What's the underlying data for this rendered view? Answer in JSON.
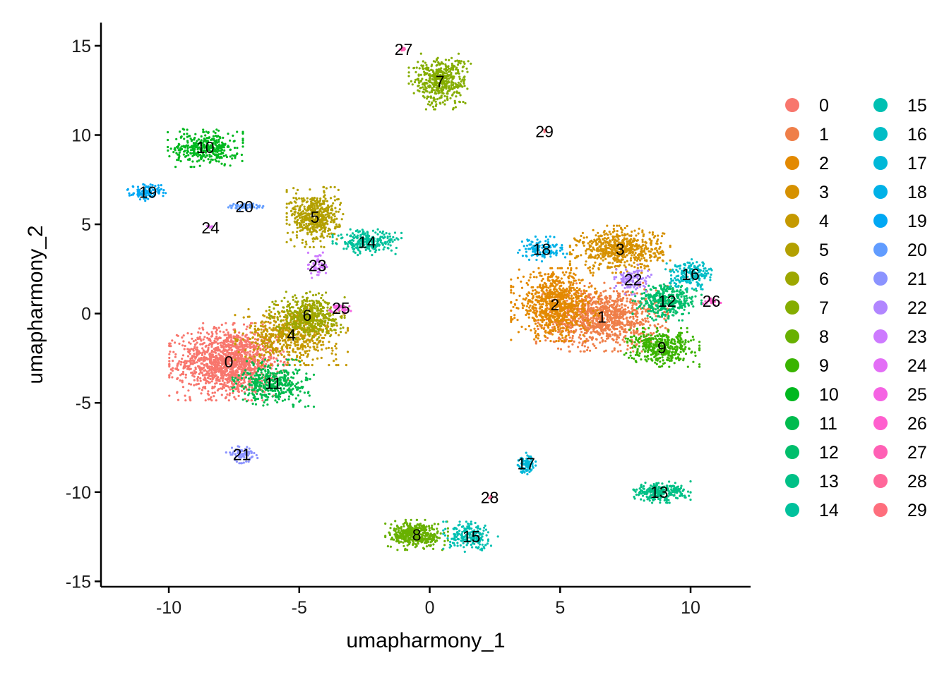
{
  "chart_data": {
    "type": "scatter",
    "xlabel": "umapharmony_1",
    "ylabel": "umapharmony_2",
    "xlim": [
      -12.6,
      12.3
    ],
    "ylim": [
      -15.3,
      16.3
    ],
    "xticks": [
      -10,
      -5,
      0,
      5,
      10
    ],
    "yticks": [
      -15,
      -10,
      -5,
      0,
      5,
      10,
      15
    ],
    "grid": false,
    "legend_placement": "right",
    "clusters": [
      {
        "id": "0",
        "color": "#F8766D",
        "label_pos": [
          -7.7,
          -2.7
        ],
        "spread": [
          0.95,
          0.9
        ],
        "n": 1400
      },
      {
        "id": "1",
        "color": "#EF7F49",
        "label_pos": [
          6.6,
          -0.2
        ],
        "spread": [
          1.05,
          0.8
        ],
        "n": 1100
      },
      {
        "id": "2",
        "color": "#E38900",
        "label_pos": [
          4.8,
          0.5
        ],
        "spread": [
          0.7,
          0.85
        ],
        "n": 800
      },
      {
        "id": "3",
        "color": "#D69100",
        "label_pos": [
          7.3,
          3.6
        ],
        "spread": [
          0.8,
          0.55
        ],
        "n": 600
      },
      {
        "id": "4",
        "color": "#C59900",
        "label_pos": [
          -5.3,
          -1.2
        ],
        "spread": [
          0.9,
          0.7
        ],
        "n": 600
      },
      {
        "id": "5",
        "color": "#B3A000",
        "label_pos": [
          -4.4,
          5.4
        ],
        "spread": [
          0.45,
          0.7
        ],
        "n": 500
      },
      {
        "id": "6",
        "color": "#9DA700",
        "label_pos": [
          -4.7,
          -0.1
        ],
        "spread": [
          0.6,
          0.55
        ],
        "n": 450
      },
      {
        "id": "7",
        "color": "#85AD00",
        "label_pos": [
          0.4,
          13.0
        ],
        "spread": [
          0.5,
          0.65
        ],
        "n": 450
      },
      {
        "id": "8",
        "color": "#68B100",
        "label_pos": [
          -0.5,
          -12.4
        ],
        "spread": [
          0.5,
          0.35
        ],
        "n": 400
      },
      {
        "id": "9",
        "color": "#3AB400",
        "label_pos": [
          8.9,
          -1.9
        ],
        "spread": [
          0.6,
          0.45
        ],
        "n": 400
      },
      {
        "id": "10",
        "color": "#00B81F",
        "label_pos": [
          -8.6,
          9.3
        ],
        "spread": [
          0.6,
          0.45
        ],
        "n": 350
      },
      {
        "id": "11",
        "color": "#00BB4E",
        "label_pos": [
          -6.0,
          -3.9
        ],
        "spread": [
          0.65,
          0.55
        ],
        "n": 400
      },
      {
        "id": "12",
        "color": "#00BE6C",
        "label_pos": [
          9.1,
          0.7
        ],
        "spread": [
          0.55,
          0.45
        ],
        "n": 350
      },
      {
        "id": "13",
        "color": "#00C086",
        "label_pos": [
          8.8,
          -10.0
        ],
        "spread": [
          0.5,
          0.25
        ],
        "n": 250
      },
      {
        "id": "14",
        "color": "#00C19C",
        "label_pos": [
          -2.4,
          4.0
        ],
        "spread": [
          0.55,
          0.3
        ],
        "n": 250
      },
      {
        "id": "15",
        "color": "#00C0B2",
        "label_pos": [
          1.6,
          -12.5
        ],
        "spread": [
          0.45,
          0.35
        ],
        "n": 200
      },
      {
        "id": "16",
        "color": "#00BDC6",
        "label_pos": [
          10.0,
          2.2
        ],
        "spread": [
          0.4,
          0.35
        ],
        "n": 200
      },
      {
        "id": "17",
        "color": "#00B8D8",
        "label_pos": [
          3.7,
          -8.4
        ],
        "spread": [
          0.15,
          0.25
        ],
        "n": 90
      },
      {
        "id": "18",
        "color": "#00B1E7",
        "label_pos": [
          4.3,
          3.6
        ],
        "spread": [
          0.4,
          0.3
        ],
        "n": 120
      },
      {
        "id": "19",
        "color": "#00A8F4",
        "label_pos": [
          -10.8,
          6.8
        ],
        "spread": [
          0.35,
          0.2
        ],
        "n": 120
      },
      {
        "id": "20",
        "color": "#619CFF",
        "label_pos": [
          -7.1,
          6.0
        ],
        "spread": [
          0.3,
          0.08
        ],
        "n": 60
      },
      {
        "id": "21",
        "color": "#8B93FF",
        "label_pos": [
          -7.2,
          -7.9
        ],
        "spread": [
          0.25,
          0.2
        ],
        "n": 80
      },
      {
        "id": "22",
        "color": "#B186FF",
        "label_pos": [
          7.8,
          1.9
        ],
        "spread": [
          0.3,
          0.35
        ],
        "n": 120
      },
      {
        "id": "23",
        "color": "#CD7AFF",
        "label_pos": [
          -4.3,
          2.7
        ],
        "spread": [
          0.15,
          0.3
        ],
        "n": 60
      },
      {
        "id": "24",
        "color": "#E36EF6",
        "label_pos": [
          -8.4,
          4.8
        ],
        "spread": [
          0.05,
          0.05
        ],
        "n": 6
      },
      {
        "id": "25",
        "color": "#F563E3",
        "label_pos": [
          -3.4,
          0.3
        ],
        "spread": [
          0.2,
          0.15
        ],
        "n": 40
      },
      {
        "id": "26",
        "color": "#FF5FCE",
        "label_pos": [
          10.8,
          0.7
        ],
        "spread": [
          0.15,
          0.1
        ],
        "n": 25
      },
      {
        "id": "27",
        "color": "#FF60B5",
        "label_pos": [
          -1.0,
          14.8
        ],
        "spread": [
          0.08,
          0.05
        ],
        "n": 8
      },
      {
        "id": "28",
        "color": "#FF679A",
        "label_pos": [
          2.3,
          -10.3
        ],
        "spread": [
          0.06,
          0.05
        ],
        "n": 5
      },
      {
        "id": "29",
        "color": "#FE6E7D",
        "label_pos": [
          4.4,
          10.2
        ],
        "spread": [
          0.04,
          0.04
        ],
        "n": 3
      }
    ]
  }
}
